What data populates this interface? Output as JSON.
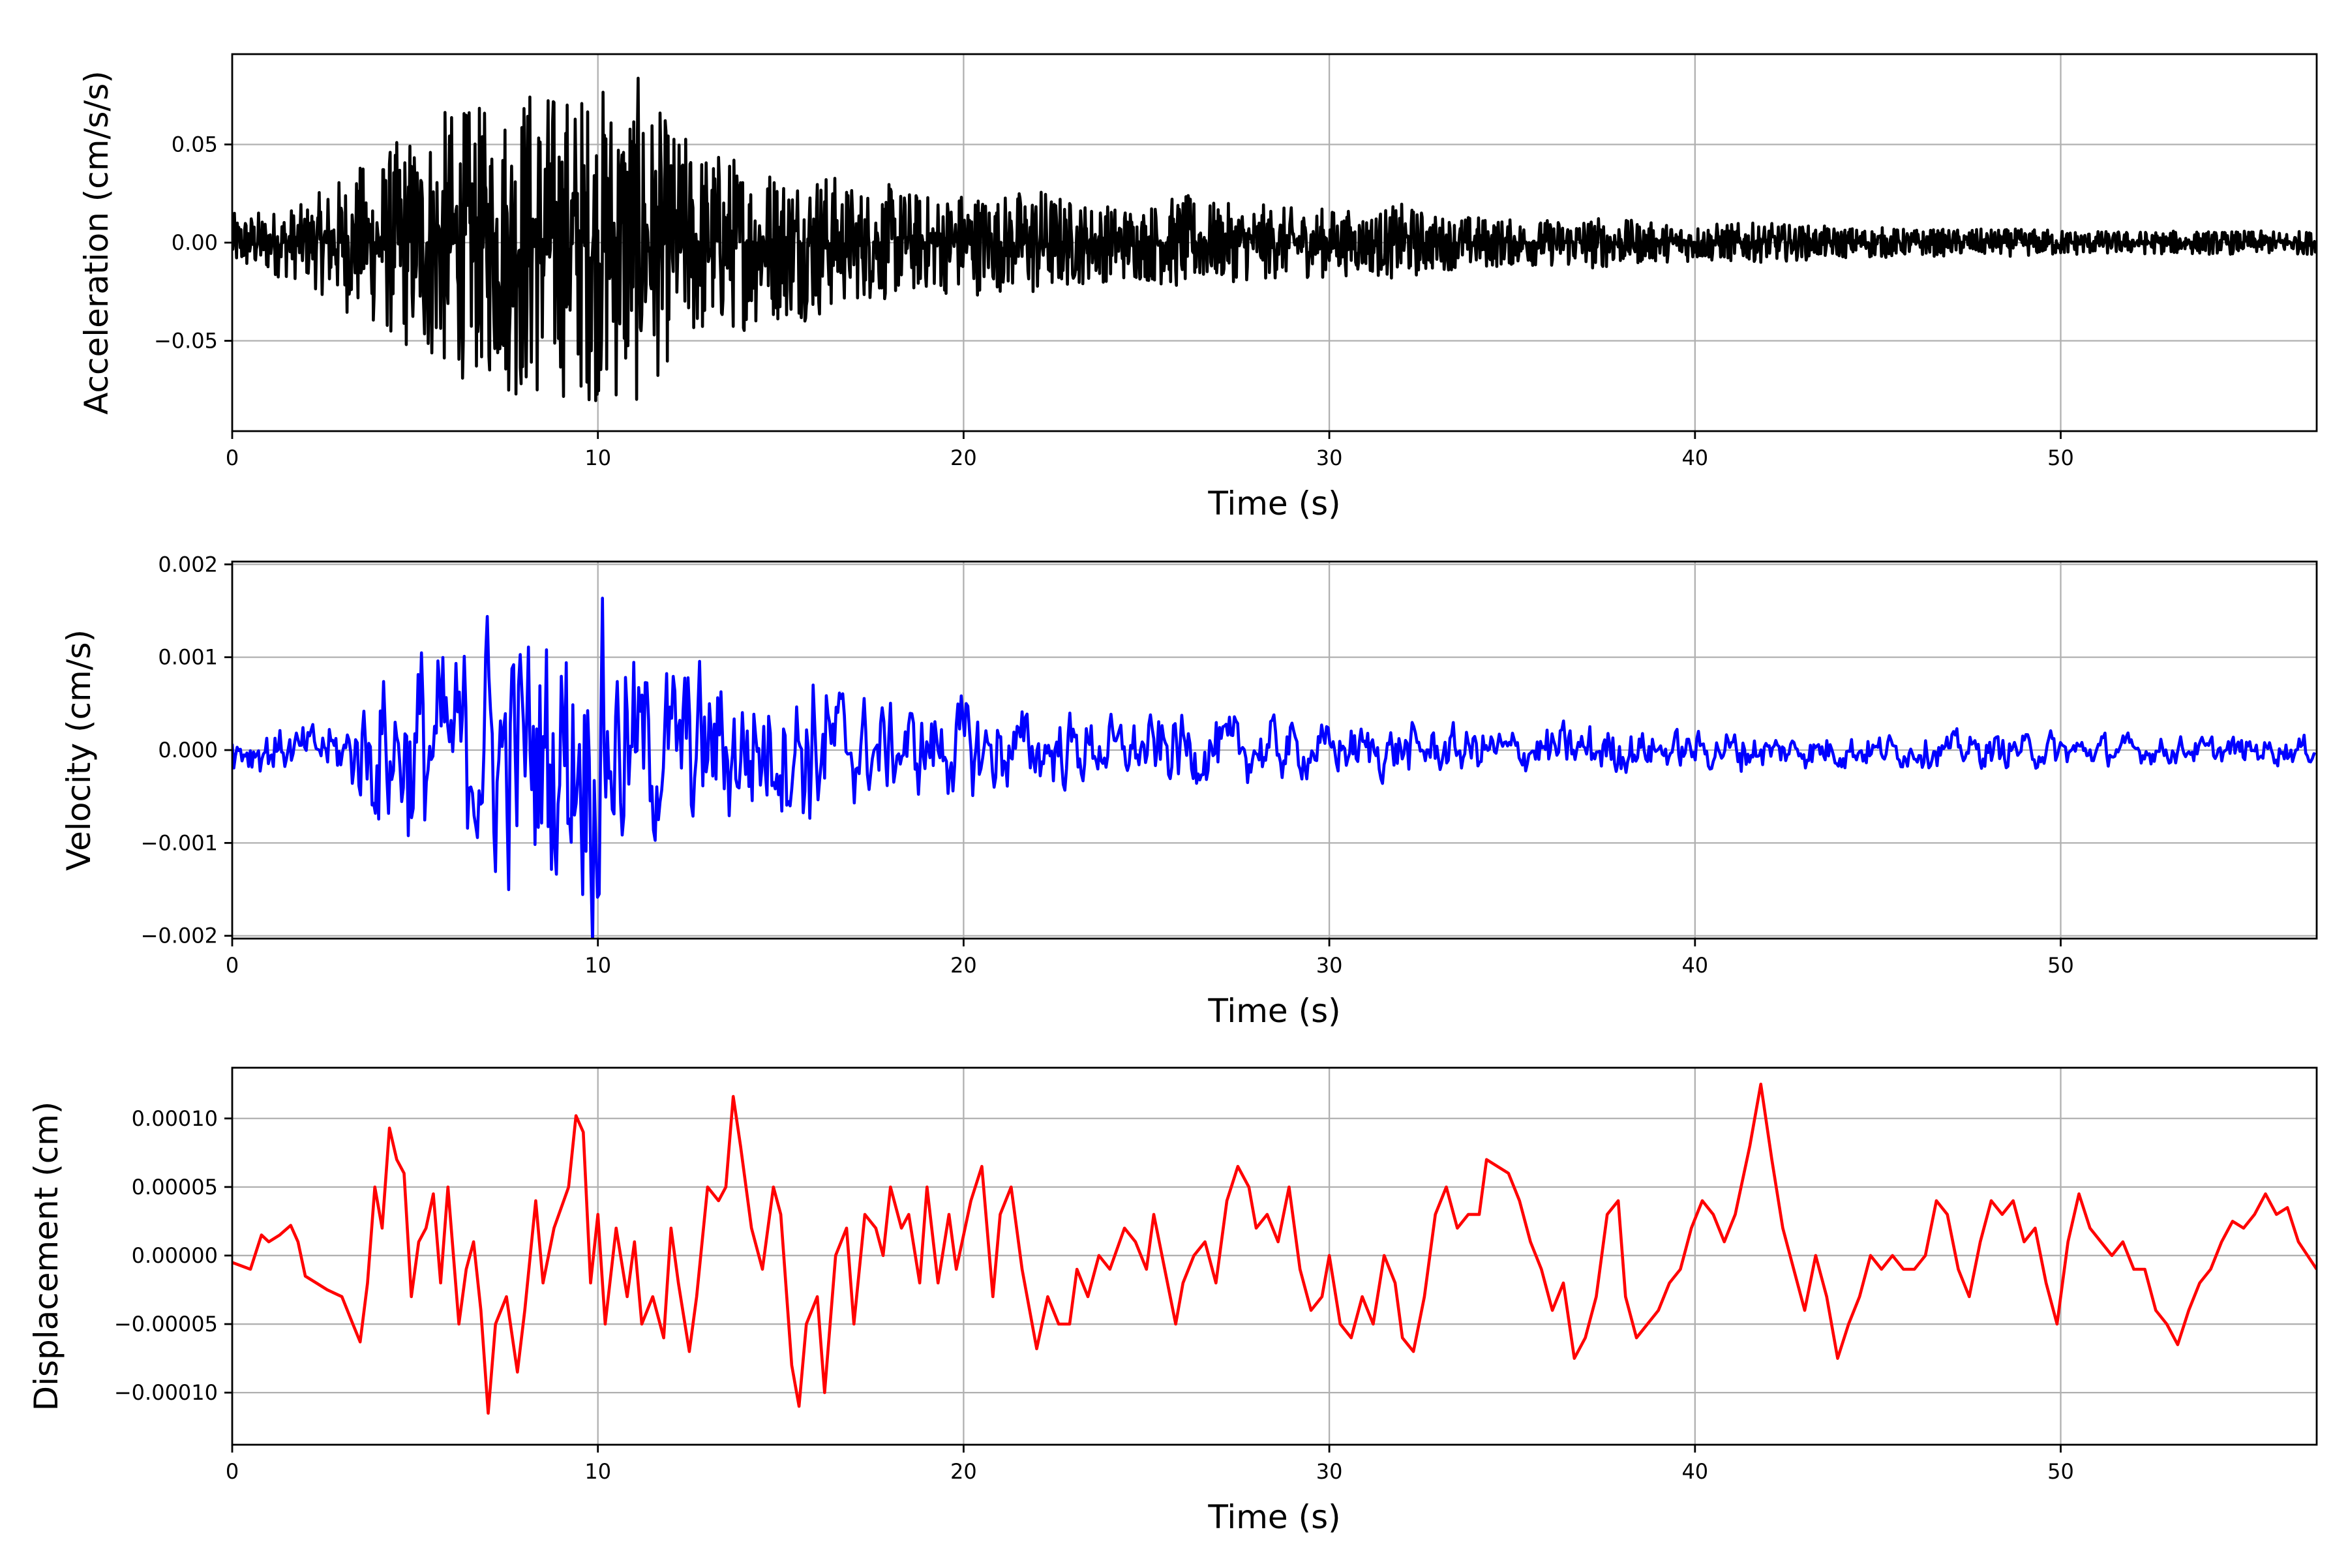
{
  "colors": {
    "acceleration": "#000000",
    "velocity": "#0000ff",
    "displacement": "#ff0000",
    "grid": "#b0b0b0"
  },
  "chart_data": [
    {
      "type": "line",
      "name": "acceleration",
      "title": "",
      "xlabel": "Time (s)",
      "ylabel": "Acceleration (cm/s/s)",
      "xlim": [
        0,
        57
      ],
      "ylim": [
        -0.096,
        0.096
      ],
      "xticks": [
        0,
        10,
        20,
        30,
        40,
        50
      ],
      "xtick_labels": [
        "0",
        "10",
        "20",
        "30",
        "40",
        "50"
      ],
      "yticks": [
        0.05,
        0.0,
        -0.05
      ],
      "ytick_labels": [
        "0.05",
        "0.00",
        "−0.05"
      ],
      "grid": true,
      "color": "#000000",
      "note": "dense record; values below are peak amplitude envelope per 1 s bin starting at t=0",
      "envelope_t0": 0,
      "envelope_dt": 1,
      "envelope": [
        0.015,
        0.017,
        0.02,
        0.035,
        0.045,
        0.06,
        0.07,
        0.07,
        0.085,
        0.08,
        0.082,
        0.087,
        0.06,
        0.05,
        0.045,
        0.04,
        0.04,
        0.03,
        0.03,
        0.025,
        0.028,
        0.025,
        0.03,
        0.022,
        0.02,
        0.02,
        0.025,
        0.02,
        0.02,
        0.018,
        0.018,
        0.016,
        0.02,
        0.014,
        0.014,
        0.012,
        0.012,
        0.014,
        0.012,
        0.01,
        0.01,
        0.01,
        0.01,
        0.009,
        0.008,
        0.008,
        0.007,
        0.007,
        0.007,
        0.007,
        0.007,
        0.006,
        0.006,
        0.006,
        0.006,
        0.006,
        0.006
      ]
    },
    {
      "type": "line",
      "name": "velocity",
      "title": "",
      "xlabel": "Time (s)",
      "ylabel": "Velocity (cm/s)",
      "xlim": [
        0,
        57
      ],
      "ylim": [
        -0.00203,
        0.00203
      ],
      "xticks": [
        0,
        10,
        20,
        30,
        40,
        50
      ],
      "xtick_labels": [
        "0",
        "10",
        "20",
        "30",
        "40",
        "50"
      ],
      "yticks": [
        0.002,
        0.001,
        0.0,
        -0.001,
        -0.002
      ],
      "ytick_labels": [
        "0.002",
        "0.001",
        "0.000",
        "−0.001",
        "−0.002"
      ],
      "grid": true,
      "color": "#0000ff",
      "note": "dense record; values below are peak amplitude envelope per 1 s bin starting at t=0",
      "envelope_t0": 0,
      "envelope_dt": 1,
      "envelope": [
        0.00025,
        0.00025,
        0.00025,
        0.00035,
        0.0009,
        0.0012,
        0.001,
        0.0015,
        0.0014,
        0.0015,
        0.0018,
        0.0011,
        0.001,
        0.0009,
        0.0009,
        0.0007,
        0.001,
        0.0006,
        0.0005,
        0.0005,
        0.00055,
        0.0005,
        0.0004,
        0.0004,
        0.00035,
        0.00035,
        0.0004,
        0.00035,
        0.00035,
        0.0003,
        0.00028,
        0.00028,
        0.0003,
        0.00025,
        0.00025,
        0.00025,
        0.00025,
        0.0003,
        0.00025,
        0.0002,
        0.0002,
        0.00025,
        0.0002,
        0.0002,
        0.0002,
        0.00018,
        0.00018,
        0.00018,
        0.00018,
        0.00018,
        0.0002,
        0.00018,
        0.00015,
        0.00015,
        0.00015,
        0.00015,
        0.00015
      ]
    },
    {
      "type": "line",
      "name": "displacement",
      "title": "",
      "xlabel": "Time (s)",
      "ylabel": "Displacement (cm)",
      "xlim": [
        0,
        57
      ],
      "ylim": [
        -0.000138,
        0.000137
      ],
      "xticks": [
        0,
        10,
        20,
        30,
        40,
        50
      ],
      "xtick_labels": [
        "0",
        "10",
        "20",
        "30",
        "40",
        "50"
      ],
      "yticks": [
        0.0001,
        5e-05,
        0.0,
        -5e-05,
        -0.0001
      ],
      "ytick_labels": [
        "0.00010",
        "0.00005",
        "0.00000",
        "−0.00005",
        "−0.00010"
      ],
      "grid": true,
      "color": "#ff0000",
      "y_unit_scale": 1e-05,
      "points_t": [
        0,
        0.5,
        0.8,
        1.0,
        1.3,
        1.6,
        1.8,
        2.0,
        2.3,
        2.6,
        3.0,
        3.3,
        3.5,
        3.7,
        3.9,
        4.1,
        4.3,
        4.5,
        4.7,
        4.9,
        5.1,
        5.3,
        5.5,
        5.7,
        5.9,
        6.2,
        6.4,
        6.6,
        6.8,
        7.0,
        7.2,
        7.5,
        7.8,
        8.0,
        8.3,
        8.5,
        8.8,
        9.2,
        9.4,
        9.6,
        9.8,
        10.0,
        10.2,
        10.5,
        10.8,
        11.0,
        11.2,
        11.5,
        11.8,
        12.0,
        12.2,
        12.5,
        12.7,
        13.0,
        13.3,
        13.5,
        13.7,
        13.9,
        14.2,
        14.5,
        14.8,
        15.0,
        15.3,
        15.5,
        15.7,
        16.0,
        16.2,
        16.5,
        16.8,
        17.0,
        17.3,
        17.6,
        17.8,
        18.0,
        18.3,
        18.5,
        18.8,
        19.0,
        19.3,
        19.6,
        19.8,
        20.2,
        20.5,
        20.8,
        21.0,
        21.3,
        21.6,
        22.0,
        22.3,
        22.6,
        22.9,
        23.1,
        23.4,
        23.7,
        24.0,
        24.4,
        24.7,
        25.0,
        25.2,
        25.5,
        25.8,
        26.0,
        26.3,
        26.6,
        26.9,
        27.2,
        27.5,
        27.8,
        28.0,
        28.3,
        28.6,
        28.9,
        29.2,
        29.5,
        29.8,
        30.0,
        30.3,
        30.6,
        30.9,
        31.2,
        31.5,
        31.8,
        32.0,
        32.3,
        32.6,
        32.9,
        33.2,
        33.5,
        33.8,
        34.1,
        34.3,
        34.6,
        34.9,
        35.2,
        35.5,
        35.8,
        36.1,
        36.4,
        36.7,
        37.0,
        37.3,
        37.6,
        37.9,
        38.1,
        38.4,
        38.7,
        39.0,
        39.3,
        39.6,
        39.9,
        40.2,
        40.5,
        40.8,
        41.1,
        41.5,
        41.8,
        42.1,
        42.4,
        42.7,
        43.0,
        43.3,
        43.6,
        43.9,
        44.2,
        44.5,
        44.8,
        45.1,
        45.4,
        45.7,
        46.0,
        46.3,
        46.6,
        46.9,
        47.2,
        47.5,
        47.8,
        48.1,
        48.4,
        48.7,
        49.0,
        49.3,
        49.6,
        49.9,
        50.2,
        50.5,
        50.8,
        51.1,
        51.4,
        51.7,
        52.0,
        52.3,
        52.6,
        52.9,
        53.2,
        53.5,
        53.8,
        54.1,
        54.4,
        54.7,
        55.0,
        55.3,
        55.6,
        55.9,
        56.2,
        56.5,
        57.0
      ],
      "points_y": [
        -0.5,
        -1,
        1.5,
        1,
        1.5,
        2.2,
        1,
        -1.5,
        -2,
        -2.5,
        -3,
        -5,
        -6.3,
        -2,
        5,
        2,
        9.3,
        7,
        6,
        -3,
        1,
        2,
        4.5,
        -2,
        5,
        -5,
        -1,
        1,
        -4,
        -11.5,
        -5,
        -3,
        -8.5,
        -4,
        4,
        -2,
        2,
        5,
        10.2,
        9,
        -2,
        3,
        -5,
        2,
        -3,
        1,
        -5,
        -3,
        -6,
        2,
        -2,
        -7,
        -3,
        5,
        4,
        5,
        11.6,
        8,
        2,
        -1,
        5,
        3,
        -8,
        -11,
        -5,
        -3,
        -10,
        0,
        2,
        -5,
        3,
        2,
        0,
        5,
        2,
        3,
        -2,
        5,
        -2,
        3,
        -1,
        4,
        6.5,
        -3,
        3,
        5,
        -1,
        -6.8,
        -3,
        -5,
        -5,
        -1,
        -3,
        0,
        -1,
        2,
        1,
        -1,
        3,
        -1,
        -5,
        -2,
        0,
        1,
        -2,
        4,
        6.5,
        5,
        2,
        3,
        1,
        5,
        -1,
        -4,
        -3,
        0,
        -5,
        -6,
        -3,
        -5,
        0,
        -2,
        -6,
        -7,
        -3,
        3,
        5,
        2,
        3,
        3,
        7,
        6.5,
        6,
        4,
        1,
        -1,
        -4,
        -2,
        -7.5,
        -6,
        -3,
        3,
        4,
        -3,
        -6,
        -5,
        -4,
        -2,
        -1,
        2,
        4,
        3,
        1,
        3,
        8,
        12.5,
        7,
        2,
        -1,
        -4,
        0,
        -3,
        -7.5,
        -5,
        -3,
        0,
        -1,
        0,
        -1,
        -1,
        0,
        4,
        3,
        -1,
        -3,
        1,
        4,
        3,
        4,
        1,
        2,
        -2,
        -5,
        1,
        4.5,
        2,
        1,
        0,
        1,
        -1,
        -1,
        -4,
        -5,
        -6.5,
        -4,
        -2,
        -1,
        1,
        2.5,
        2,
        3,
        4.5,
        3,
        3.5,
        1,
        -1
      ]
    }
  ]
}
